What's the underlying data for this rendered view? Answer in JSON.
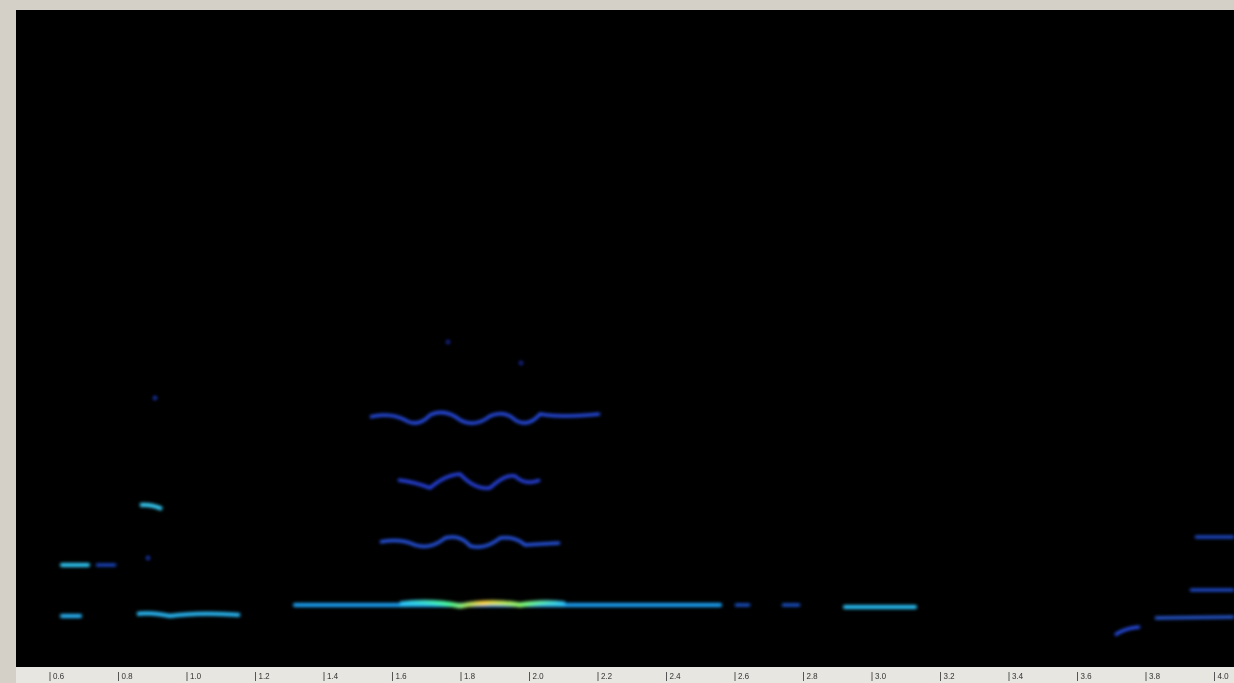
{
  "time_axis": {
    "ticks": [
      "0.6",
      "0.8",
      "1.0",
      "1.2",
      "1.4",
      "1.6",
      "1.8",
      "2.0",
      "2.2",
      "2.4",
      "2.6",
      "2.8",
      "3.0",
      "3.2",
      "3.4",
      "3.6",
      "3.8",
      "4.0"
    ]
  }
}
